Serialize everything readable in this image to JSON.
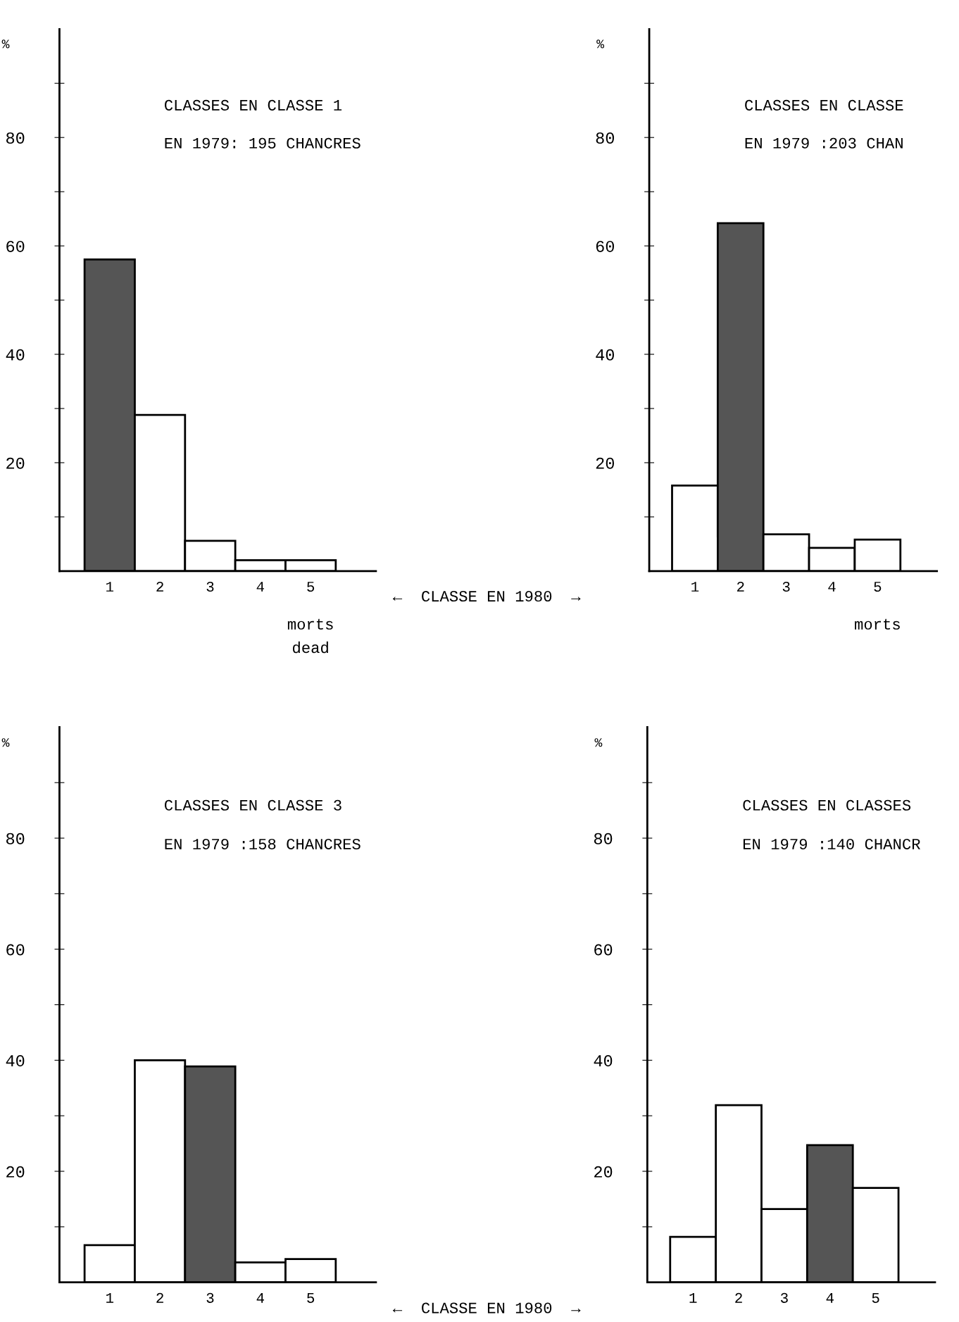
{
  "chart_data": [
    {
      "type": "bar",
      "title": "CLASSES EN CLASSE 1",
      "subtitle": "EN 1979: 195 CHANCRES",
      "ylabel": "%",
      "xlabel": "←  CLASSE EN 1980  →",
      "categories": [
        "1",
        "2",
        "3",
        "4",
        "5"
      ],
      "values": [
        57.5,
        28.8,
        5.6,
        2.0,
        2.0
      ],
      "colors": [
        "#555555",
        "#ffffff",
        "#ffffff",
        "#ffffff",
        "#ffffff"
      ],
      "ylim": [
        0,
        100
      ],
      "yticks": [
        {
          "value": 10,
          "label": null
        },
        20,
        {
          "value": 30,
          "label": null
        },
        40,
        {
          "value": 50,
          "label": null
        },
        60,
        {
          "value": 70,
          "label": null
        },
        80,
        {
          "value": 90,
          "label": null
        }
      ],
      "annotations": [
        "morts",
        "dead"
      ],
      "grid": false,
      "legend": false
    },
    {
      "type": "bar",
      "title": "CLASSES EN CLASSE",
      "subtitle": "EN 1979 :203 CHAN",
      "ylabel": "%",
      "categories": [
        "1",
        "2",
        "3",
        "4",
        "5"
      ],
      "values": [
        15.8,
        64.2,
        6.8,
        4.3,
        5.8
      ],
      "colors": [
        "#ffffff",
        "#555555",
        "#ffffff",
        "#ffffff",
        "#ffffff"
      ],
      "ylim": [
        0,
        100
      ],
      "yticks": [
        {
          "value": 10,
          "label": null
        },
        20,
        {
          "value": 30,
          "label": null
        },
        40,
        {
          "value": 50,
          "label": null
        },
        60,
        {
          "value": 70,
          "label": null
        },
        80,
        {
          "value": 90,
          "label": null
        }
      ],
      "annotations": [
        "morts"
      ],
      "grid": false,
      "legend": false
    },
    {
      "type": "bar",
      "title": "CLASSES EN CLASSE 3",
      "subtitle": "EN 1979 :158 CHANCRES",
      "ylabel": "%",
      "xlabel": "←  CLASSE EN 1980  →",
      "categories": [
        "1",
        "2",
        "3",
        "4",
        "5"
      ],
      "values": [
        6.7,
        40.0,
        38.9,
        3.6,
        4.2
      ],
      "colors": [
        "#ffffff",
        "#ffffff",
        "#555555",
        "#ffffff",
        "#ffffff"
      ],
      "ylim": [
        0,
        100
      ],
      "yticks": [
        {
          "value": 10,
          "label": null
        },
        20,
        {
          "value": 30,
          "label": null
        },
        40,
        {
          "value": 50,
          "label": null
        },
        60,
        {
          "value": 70,
          "label": null
        },
        80,
        {
          "value": 90,
          "label": null
        }
      ],
      "grid": false,
      "legend": false
    },
    {
      "type": "bar",
      "title": "CLASSES EN CLASSES",
      "subtitle": "EN 1979 :140 CHANCR",
      "ylabel": "%",
      "categories": [
        "1",
        "2",
        "3",
        "4",
        "5"
      ],
      "values": [
        8.2,
        31.9,
        13.2,
        24.7,
        17.0
      ],
      "colors": [
        "#ffffff",
        "#ffffff",
        "#ffffff",
        "#555555",
        "#ffffff"
      ],
      "ylim": [
        0,
        100
      ],
      "yticks": [
        {
          "value": 10,
          "label": null
        },
        20,
        {
          "value": 30,
          "label": null
        },
        40,
        {
          "value": 50,
          "label": null
        },
        60,
        {
          "value": 70,
          "label": null
        },
        80,
        {
          "value": 90,
          "label": null
        }
      ],
      "grid": false,
      "legend": false
    }
  ]
}
